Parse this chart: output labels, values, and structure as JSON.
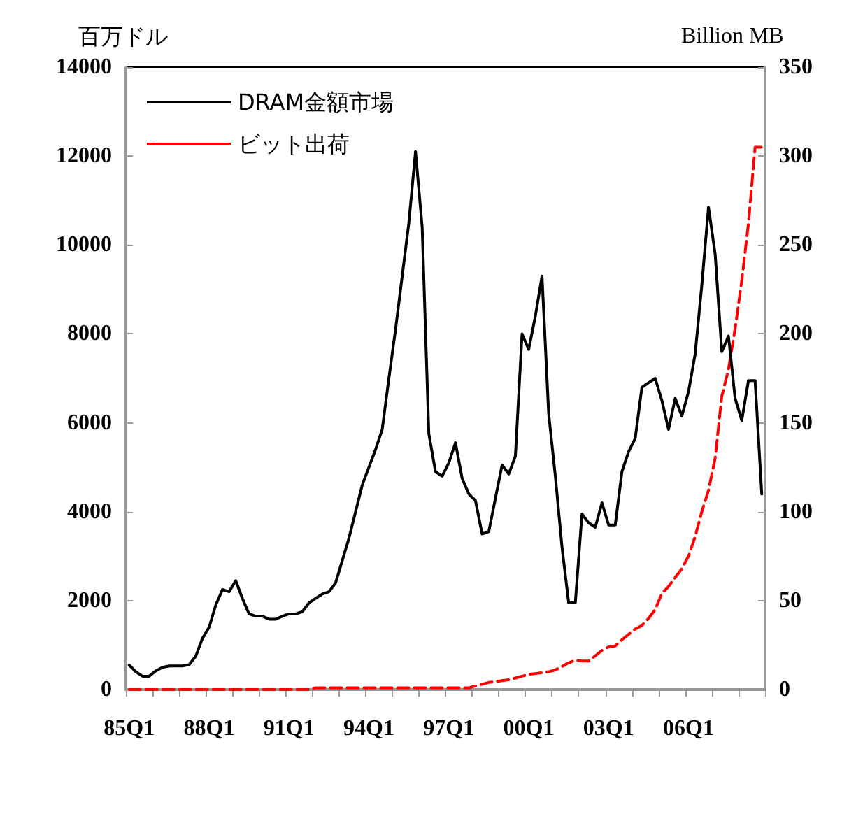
{
  "chart_data": {
    "type": "line",
    "ylabel": "百万ドル",
    "y2label": "Billion MB",
    "categories": [
      "85Q1",
      null,
      null,
      null,
      null,
      null,
      null,
      null,
      null,
      null,
      null,
      null,
      "88Q1",
      null,
      null,
      null,
      null,
      null,
      null,
      null,
      null,
      null,
      null,
      null,
      "91Q1",
      null,
      null,
      null,
      null,
      null,
      null,
      null,
      null,
      null,
      null,
      null,
      "94Q1",
      null,
      null,
      null,
      null,
      null,
      null,
      null,
      null,
      null,
      null,
      null,
      "97Q1",
      null,
      null,
      null,
      null,
      null,
      null,
      null,
      null,
      null,
      null,
      null,
      "00Q1",
      null,
      null,
      null,
      null,
      null,
      null,
      null,
      null,
      null,
      null,
      null,
      "03Q1",
      null,
      null,
      null,
      null,
      null,
      null,
      null,
      null,
      null,
      null,
      null,
      "06Q1",
      null,
      null,
      null,
      null,
      null,
      null,
      null,
      null,
      null,
      null,
      null
    ],
    "series": [
      {
        "name": "DRAM金額市場",
        "color": "#000000",
        "line_style": "solid",
        "values": [
          550,
          400,
          300,
          300,
          420,
          500,
          530,
          530,
          530,
          560,
          750,
          1150,
          1400,
          1900,
          2250,
          2200,
          2450,
          2050,
          1700,
          1650,
          1650,
          1580,
          1580,
          1650,
          1700,
          1700,
          1750,
          1950,
          2050,
          2150,
          2200,
          2400,
          2900,
          3400,
          4000,
          4600,
          5000,
          5400,
          5850,
          7000,
          8100,
          9300,
          10500,
          12100,
          10400,
          5750,
          4900,
          4800,
          5100,
          5550,
          4750,
          4400,
          4250,
          3500,
          3550,
          4300,
          5050,
          4850,
          5250,
          8000,
          7650,
          8400,
          9300,
          6200,
          4800,
          3200,
          1950,
          1950,
          3950,
          3750,
          3650,
          4200,
          3700,
          3700,
          4900,
          5350,
          5650,
          6800,
          6900,
          7000,
          6500,
          5850,
          6550,
          6150,
          6700,
          7550,
          9100,
          10850,
          9800,
          7600,
          7950,
          6550,
          6050,
          6950,
          6950,
          4400
        ]
      },
      {
        "name": "ビット出荷",
        "color": "#ff0000",
        "line_style": "dashed",
        "axis": "y2",
        "values": [
          0,
          0,
          0,
          0,
          0,
          0,
          0,
          0,
          0,
          0,
          0,
          0,
          0,
          0,
          0,
          0,
          0,
          0,
          0,
          0,
          0,
          0,
          0,
          0,
          0,
          0,
          0,
          0,
          1,
          1,
          1,
          1,
          1,
          1,
          1,
          1,
          1,
          1,
          1,
          1,
          1,
          1,
          1,
          1,
          1,
          1,
          1,
          1,
          1,
          1,
          1,
          1,
          2,
          3,
          4,
          4.5,
          5,
          5.5,
          6.5,
          7.5,
          8.5,
          9,
          9.5,
          10,
          11,
          13,
          15,
          16.5,
          16,
          16,
          19,
          22,
          24,
          24.5,
          28,
          31,
          34,
          36,
          40,
          45,
          54,
          58,
          63,
          68,
          75,
          86,
          100,
          112,
          130,
          165,
          180,
          203,
          230,
          262,
          305,
          305
        ]
      }
    ],
    "ylim": [
      0,
      14000
    ],
    "yticks": [
      0,
      2000,
      4000,
      6000,
      8000,
      10000,
      12000,
      14000
    ],
    "y2lim": [
      0,
      350
    ],
    "y2ticks": [
      0,
      50,
      100,
      150,
      200,
      250,
      300,
      350
    ],
    "grid": false,
    "legend": "top left",
    "marker": "none"
  }
}
